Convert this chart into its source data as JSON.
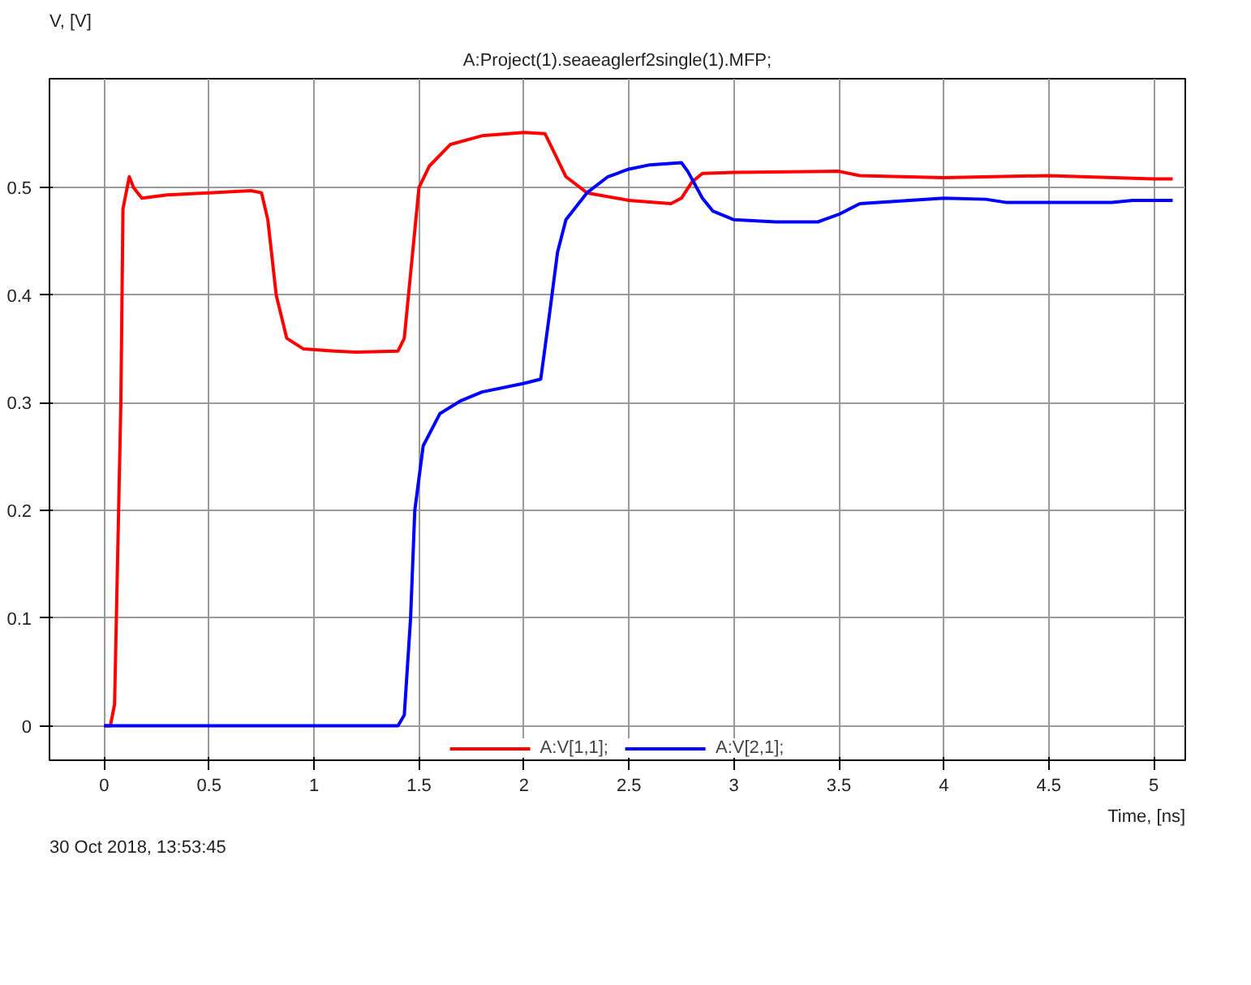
{
  "chart_data": {
    "type": "line",
    "title": "A:Project(1).seaeaglerf2single(1).MFP;",
    "xlabel": "Time, [ns]",
    "ylabel": "V, [V]",
    "annotations": [
      "30 Oct 2018, 13:53:45"
    ],
    "xlim": [
      -0.26,
      5.15
    ],
    "ylim": [
      -0.032,
      0.601
    ],
    "xticks": [
      0,
      0.5,
      1,
      1.5,
      2,
      2.5,
      3,
      3.5,
      4,
      4.5,
      5
    ],
    "yticks": [
      0,
      0.1,
      0.2,
      0.3,
      0.4,
      0.5
    ],
    "grid": true,
    "legend": "bottom",
    "line_style": "solid",
    "marker": "none",
    "series": [
      {
        "name": "A:V[1,1];",
        "color": "#ff0000",
        "x": [
          0,
          0.03,
          0.05,
          0.08,
          0.09,
          0.12,
          0.14,
          0.18,
          0.3,
          0.5,
          0.7,
          0.75,
          0.78,
          0.82,
          0.87,
          0.95,
          1.1,
          1.2,
          1.4,
          1.43,
          1.46,
          1.5,
          1.55,
          1.65,
          1.8,
          2.0,
          2.1,
          2.15,
          2.2,
          2.3,
          2.5,
          2.7,
          2.75,
          2.8,
          2.85,
          3.0,
          3.5,
          3.6,
          4.0,
          4.5,
          5.0,
          5.09
        ],
        "values": [
          0,
          0,
          0.02,
          0.3,
          0.48,
          0.51,
          0.5,
          0.49,
          0.493,
          0.495,
          0.497,
          0.495,
          0.47,
          0.4,
          0.36,
          0.35,
          0.348,
          0.347,
          0.348,
          0.36,
          0.42,
          0.5,
          0.52,
          0.54,
          0.548,
          0.551,
          0.55,
          0.53,
          0.51,
          0.495,
          0.488,
          0.485,
          0.49,
          0.505,
          0.513,
          0.514,
          0.515,
          0.511,
          0.509,
          0.511,
          0.508,
          0.508
        ]
      },
      {
        "name": "A:V[2,1];",
        "color": "#0000ff",
        "x": [
          0,
          1.4,
          1.43,
          1.46,
          1.48,
          1.52,
          1.6,
          1.7,
          1.8,
          2.0,
          2.08,
          2.12,
          2.16,
          2.2,
          2.3,
          2.4,
          2.5,
          2.6,
          2.75,
          2.78,
          2.85,
          2.9,
          3.0,
          3.2,
          3.4,
          3.5,
          3.6,
          4.0,
          4.2,
          4.3,
          4.8,
          4.9,
          5.09
        ],
        "values": [
          0,
          0,
          0.01,
          0.1,
          0.2,
          0.26,
          0.29,
          0.302,
          0.31,
          0.318,
          0.322,
          0.38,
          0.44,
          0.47,
          0.495,
          0.51,
          0.517,
          0.521,
          0.523,
          0.515,
          0.49,
          0.478,
          0.47,
          0.468,
          0.468,
          0.475,
          0.485,
          0.49,
          0.489,
          0.486,
          0.486,
          0.488,
          0.488
        ]
      }
    ]
  }
}
